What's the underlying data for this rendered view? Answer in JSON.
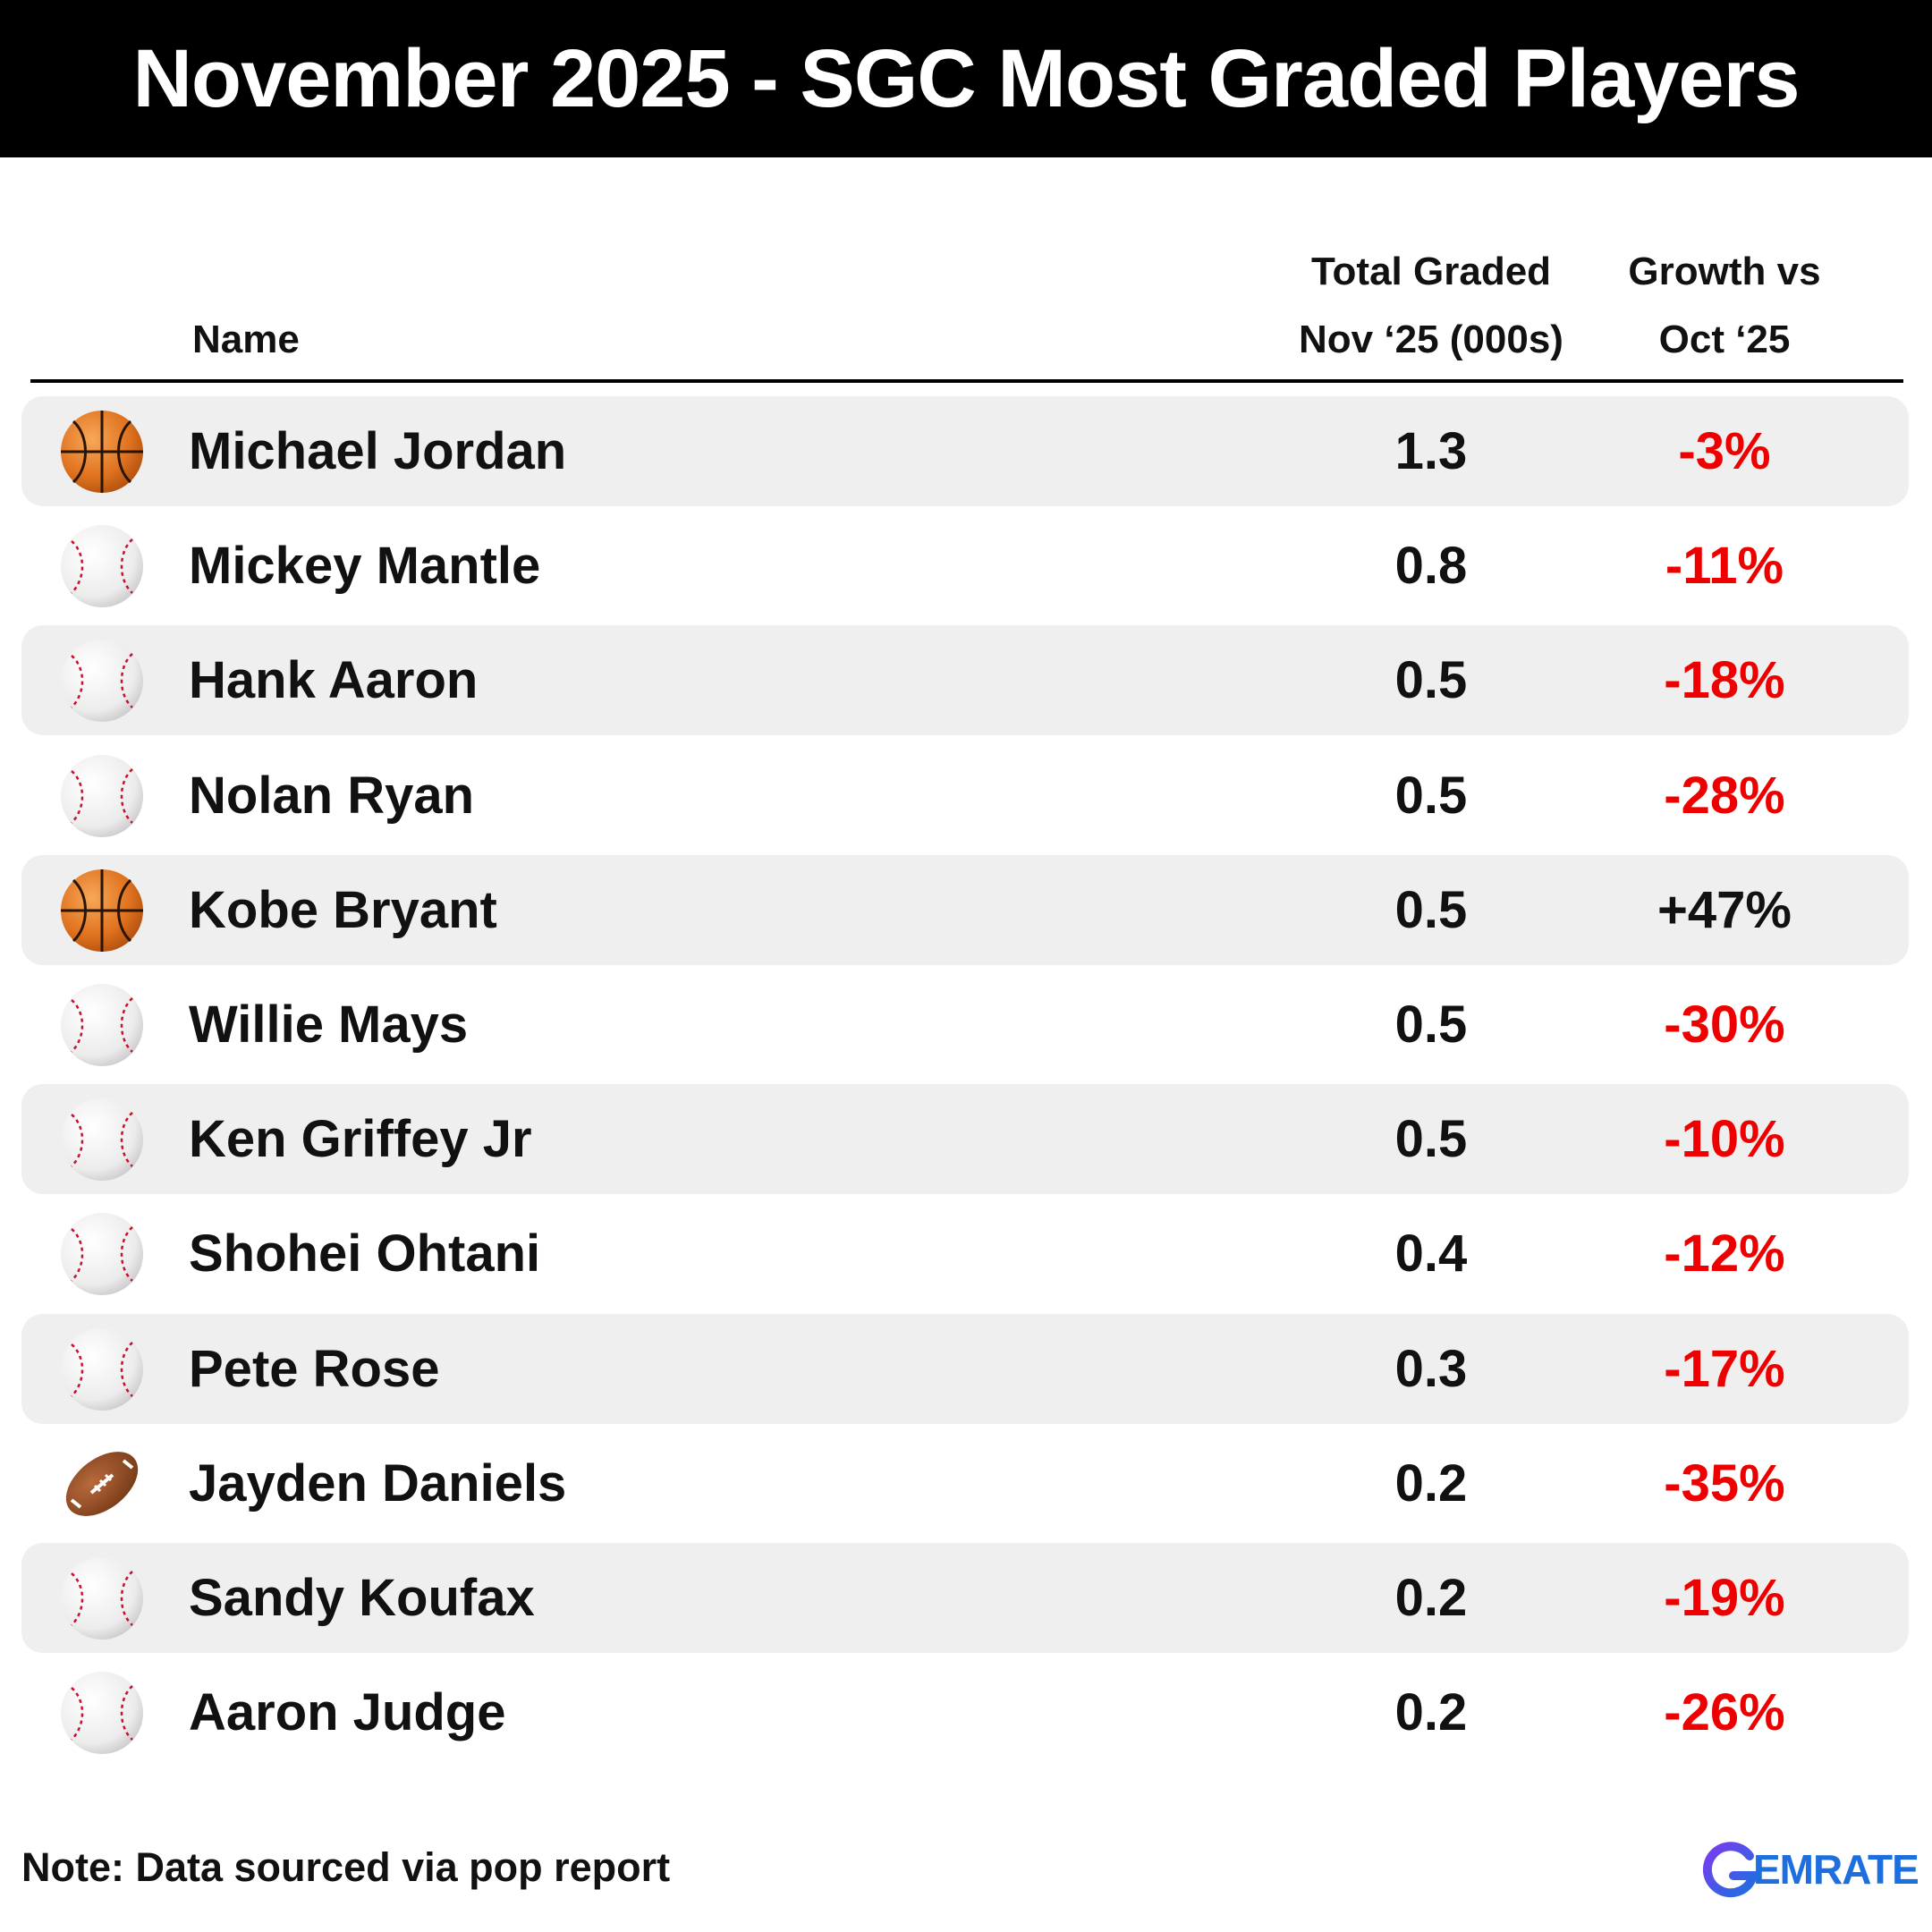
{
  "title": "November 2025 - SGC Most Graded Players",
  "columns": {
    "name": "Name",
    "total_line1": "Total Graded",
    "total_line2": "Nov ‘25 (000s)",
    "growth_line1": "Growth vs",
    "growth_line2": "Oct ‘25"
  },
  "colors": {
    "negative": "#ee0000",
    "positive": "#111111",
    "row_shade": "#efefef"
  },
  "chart_data": {
    "type": "table",
    "columns": [
      "Name",
      "Total Graded Nov ‘25 (000s)",
      "Growth vs Oct ‘25"
    ],
    "rows": [
      {
        "sport_icon": "basketball-icon",
        "name": "Michael Jordan",
        "total": "1.3",
        "growth": "-3%"
      },
      {
        "sport_icon": "baseball-icon",
        "name": "Mickey Mantle",
        "total": "0.8",
        "growth": "-11%"
      },
      {
        "sport_icon": "baseball-icon",
        "name": "Hank Aaron",
        "total": "0.5",
        "growth": "-18%"
      },
      {
        "sport_icon": "baseball-icon",
        "name": "Nolan Ryan",
        "total": "0.5",
        "growth": "-28%"
      },
      {
        "sport_icon": "basketball-icon",
        "name": "Kobe Bryant",
        "total": "0.5",
        "growth": "+47%"
      },
      {
        "sport_icon": "baseball-icon",
        "name": "Willie Mays",
        "total": "0.5",
        "growth": "-30%"
      },
      {
        "sport_icon": "baseball-icon",
        "name": "Ken Griffey Jr",
        "total": "0.5",
        "growth": "-10%"
      },
      {
        "sport_icon": "baseball-icon",
        "name": "Shohei Ohtani",
        "total": "0.4",
        "growth": "-12%"
      },
      {
        "sport_icon": "baseball-icon",
        "name": "Pete Rose",
        "total": "0.3",
        "growth": "-17%"
      },
      {
        "sport_icon": "football-icon",
        "name": "Jayden Daniels",
        "total": "0.2",
        "growth": "-35%"
      },
      {
        "sport_icon": "baseball-icon",
        "name": "Sandy Koufax",
        "total": "0.2",
        "growth": "-19%"
      },
      {
        "sport_icon": "baseball-icon",
        "name": "Aaron Judge",
        "total": "0.2",
        "growth": "-26%"
      }
    ]
  },
  "note": "Note: Data sourced via pop report",
  "logo": {
    "text": "EMRATE",
    "icon": "gemrate-g-logo"
  }
}
